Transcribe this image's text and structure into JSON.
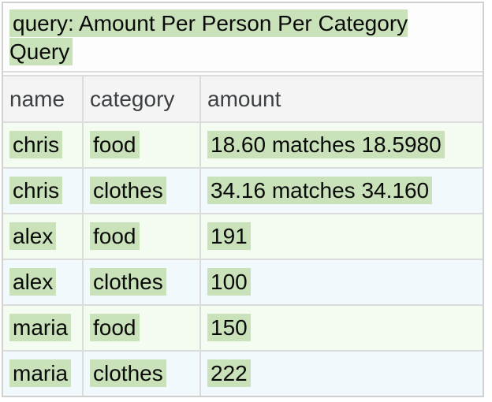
{
  "title": "query: Amount Per Person Per Category Query",
  "table": {
    "columns": [
      "name",
      "category",
      "amount"
    ],
    "rows": [
      {
        "name": "chris",
        "category": "food",
        "amount": "18.60 matches 18.5980"
      },
      {
        "name": "chris",
        "category": "clothes",
        "amount": "34.16 matches 34.160"
      },
      {
        "name": "alex",
        "category": "food",
        "amount": "191"
      },
      {
        "name": "alex",
        "category": "clothes",
        "amount": "100"
      },
      {
        "name": "maria",
        "category": "food",
        "amount": "150"
      },
      {
        "name": "maria",
        "category": "clothes",
        "amount": "222"
      }
    ]
  },
  "colors": {
    "pass_highlight": "#c9e2ba",
    "row_alt_green": "#f4fbf1",
    "row_alt_blue": "#f1f9fc",
    "header_bg": "#f4f4f4",
    "border": "#dcdcdc",
    "outer_border": "#d0d0d0",
    "header_text": "#3c4043",
    "cell_text": "#0a0a0a"
  }
}
